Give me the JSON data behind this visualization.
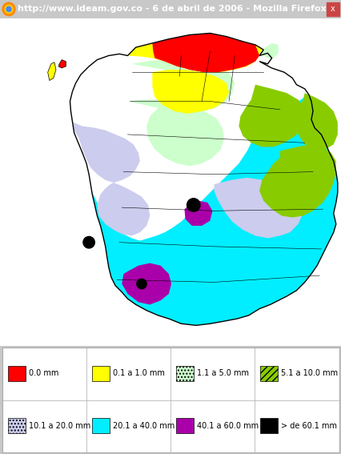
{
  "title_bar": "http://www.ideam.gov.co - 6 de abril de 2006 - Mozilla Firefox",
  "title_bar_bg": "#5577cc",
  "title_bar_text_color": "#ffffff",
  "title_bar_fontsize": 8.0,
  "legend_items": [
    {
      "label": "0.0 mm",
      "color": "#ff0000",
      "hatch": null
    },
    {
      "label": "0.1 a 1.0 mm",
      "color": "#ffff00",
      "hatch": null
    },
    {
      "label": "1.1 a 5.0 mm",
      "color": "#ccffcc",
      "hatch": "...."
    },
    {
      "label": "5.1 a 10.0 mm",
      "color": "#88cc00",
      "hatch": "////"
    },
    {
      "label": "10.1 a 20.0 mm",
      "color": "#ccccee",
      "hatch": "...."
    },
    {
      "label": "20.1 a 40.0 mm",
      "color": "#00eeff",
      "hatch": null
    },
    {
      "label": "40.1 a 60.0 mm",
      "color": "#aa00aa",
      "hatch": null
    },
    {
      "> de 60.1 mm": "> de 60.1 mm",
      "label": "> de 60.1 mm",
      "color": "#000000",
      "hatch": null
    }
  ],
  "legend_fontsize": 7.0,
  "legend_bg": "#f0f0f0",
  "map_bg": "#ffffff",
  "outer_bg": "#c8c8c8",
  "fig_width": 4.27,
  "fig_height": 5.67,
  "dpi": 100,
  "colors": {
    "RED": "#ff0000",
    "YELLOW": "#ffff00",
    "MINT": "#ccffcc",
    "LGREEN": "#88cc00",
    "LAVENDER": "#ccccee",
    "CYAN": "#00eeff",
    "PURPLE": "#aa00aa",
    "BLACK": "#000000"
  }
}
